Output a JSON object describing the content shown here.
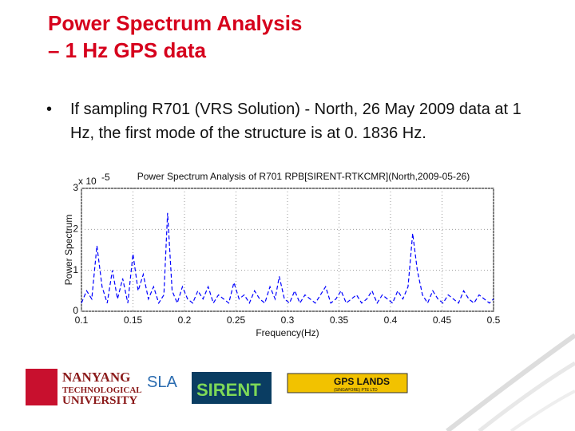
{
  "slide": {
    "title_lines": [
      "Power Spectrum Analysis",
      "– 1 Hz GPS data"
    ],
    "bullet": "If sampling R701 (VRS Solution) - North, 26 May 2009 data at 1 Hz, the first mode of the structure is at 0. 1836 Hz."
  },
  "logos": {
    "ntu": [
      "NANYANG",
      "TECHNOLOGICAL",
      "UNIVERSITY"
    ],
    "sla": "SLA",
    "sirent": "SIRENT",
    "gps": "GPS LANDS",
    "gps_sub": "(SINGAPORE) PTE LTD"
  },
  "chart_data": {
    "type": "line",
    "title": "Power Spectrum Analysis of R701 RPB[SIRENT-RTKCMR](North,2009-05-26)",
    "x_label": "Frequency(Hz)",
    "y_label": "Power Spectrum",
    "y_multiplier": {
      "base": "x 10",
      "exponent": "-5"
    },
    "x": [
      0.1,
      0.105,
      0.11,
      0.115,
      0.12,
      0.125,
      0.13,
      0.135,
      0.14,
      0.145,
      0.15,
      0.155,
      0.16,
      0.165,
      0.17,
      0.175,
      0.18,
      0.1836,
      0.188,
      0.193,
      0.198,
      0.203,
      0.208,
      0.213,
      0.218,
      0.223,
      0.228,
      0.233,
      0.238,
      0.243,
      0.248,
      0.253,
      0.258,
      0.263,
      0.268,
      0.273,
      0.278,
      0.283,
      0.288,
      0.292,
      0.297,
      0.302,
      0.307,
      0.312,
      0.317,
      0.322,
      0.327,
      0.332,
      0.337,
      0.342,
      0.347,
      0.352,
      0.357,
      0.362,
      0.367,
      0.372,
      0.377,
      0.382,
      0.387,
      0.392,
      0.397,
      0.402,
      0.407,
      0.412,
      0.417,
      0.4215,
      0.426,
      0.431,
      0.436,
      0.441,
      0.446,
      0.451,
      0.456,
      0.461,
      0.466,
      0.471,
      0.476,
      0.481,
      0.486,
      0.491,
      0.496,
      0.5
    ],
    "series": [
      {
        "color": "#0000ff",
        "dashed": true,
        "values": [
          0.2,
          0.5,
          0.3,
          1.6,
          0.6,
          0.2,
          1.0,
          0.3,
          0.8,
          0.2,
          1.4,
          0.5,
          0.9,
          0.3,
          0.6,
          0.2,
          0.4,
          2.4,
          0.5,
          0.2,
          0.6,
          0.3,
          0.2,
          0.5,
          0.3,
          0.6,
          0.2,
          0.4,
          0.3,
          0.2,
          0.7,
          0.3,
          0.4,
          0.2,
          0.5,
          0.3,
          0.2,
          0.6,
          0.3,
          0.85,
          0.3,
          0.2,
          0.5,
          0.2,
          0.4,
          0.3,
          0.2,
          0.4,
          0.6,
          0.2,
          0.3,
          0.5,
          0.2,
          0.3,
          0.4,
          0.2,
          0.3,
          0.5,
          0.2,
          0.4,
          0.3,
          0.2,
          0.5,
          0.3,
          0.6,
          1.9,
          1.0,
          0.4,
          0.2,
          0.5,
          0.3,
          0.2,
          0.4,
          0.3,
          0.2,
          0.5,
          0.3,
          0.2,
          0.4,
          0.3,
          0.2,
          0.3
        ]
      }
    ],
    "xlim": [
      0.1,
      0.5
    ],
    "xticks": [
      0.1,
      0.15,
      0.2,
      0.25,
      0.3,
      0.35,
      0.4,
      0.45,
      0.5
    ],
    "ylim": [
      0,
      3
    ],
    "yticks": [
      0,
      1,
      2,
      3
    ],
    "grid": true
  }
}
